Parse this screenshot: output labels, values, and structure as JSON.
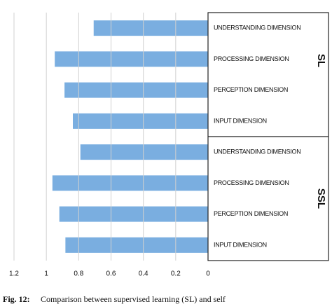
{
  "chart_data": {
    "type": "bar",
    "orientation": "horizontal",
    "categories": [
      "UNDERSTANDING DIMENSION",
      "PROCESSING DIMENSION",
      "PERCEPTION DIMENSION",
      "INPUT DIMENSION",
      "UNDERSTANDING DIMENSION",
      "PROCESSING DIMENSION",
      "PERCEPTION DIMENSION",
      "INPUT DIMENSION"
    ],
    "values": [
      0.7073,
      0.9479,
      0.8876,
      0.8361,
      0.7894,
      0.9624,
      0.9196,
      0.8821
    ],
    "groups": [
      "SL",
      "SSL"
    ],
    "color": "#7aaee0",
    "xlim": [
      0,
      1.2
    ],
    "xticks": [
      1.2,
      1,
      0.8,
      0.6,
      0.4,
      0.2,
      0
    ],
    "x_reversed": true,
    "grid": true,
    "caption_label": "Fig. 12:",
    "caption": "Comparison between supervised learning (SL) and self"
  }
}
